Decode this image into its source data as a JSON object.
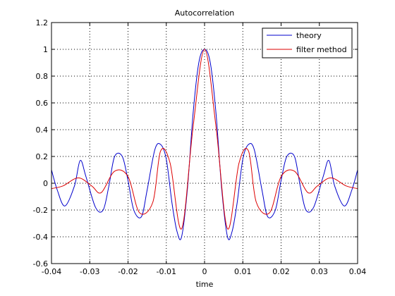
{
  "chart_data": {
    "type": "line",
    "title": "Autocorrelation",
    "xlabel": "time",
    "ylabel": "",
    "xlim": [
      -0.04,
      0.04
    ],
    "ylim": [
      -0.6,
      1.2
    ],
    "xticks": [
      -0.04,
      -0.03,
      -0.02,
      -0.01,
      0,
      0.01,
      0.02,
      0.03,
      0.04
    ],
    "xtick_labels": [
      "-0.04",
      "-0.03",
      "-0.02",
      "-0.01",
      "0",
      "0.01",
      "0.02",
      "0.03",
      "0.04"
    ],
    "yticks": [
      -0.6,
      -0.4,
      -0.2,
      0,
      0.2,
      0.4,
      0.6,
      0.8,
      1,
      1.2
    ],
    "ytick_labels": [
      "-0.6",
      "-0.4",
      "-0.2",
      "0",
      "0.2",
      "0.4",
      "0.6",
      "0.8",
      "1",
      "1.2"
    ],
    "grid": true,
    "legend_position": "top-right",
    "series": [
      {
        "name": "theory",
        "color": "#0000cc",
        "x": [
          -0.04,
          -0.0385,
          -0.0365,
          -0.034,
          -0.0325,
          -0.031,
          -0.0285,
          -0.0265,
          -0.025,
          -0.0235,
          -0.0215,
          -0.02,
          -0.0185,
          -0.0165,
          -0.015,
          -0.013,
          -0.0115,
          -0.01,
          -0.0085,
          -0.0072,
          -0.006,
          -0.0045,
          -0.003,
          -0.0015,
          0,
          0.0015,
          0.003,
          0.0045,
          0.006,
          0.0072,
          0.0085,
          0.01,
          0.0115,
          0.013,
          0.015,
          0.0165,
          0.0185,
          0.02,
          0.0215,
          0.0235,
          0.025,
          0.0265,
          0.0285,
          0.031,
          0.0325,
          0.034,
          0.0365,
          0.0385,
          0.04
        ],
        "y": [
          0.1,
          -0.05,
          -0.17,
          -0.02,
          0.17,
          0.05,
          -0.18,
          -0.2,
          -0.02,
          0.2,
          0.2,
          0.02,
          -0.2,
          -0.25,
          -0.05,
          0.25,
          0.29,
          0.18,
          -0.15,
          -0.36,
          -0.4,
          -0.05,
          0.52,
          0.9,
          1.0,
          0.9,
          0.52,
          -0.05,
          -0.4,
          -0.36,
          -0.15,
          0.18,
          0.29,
          0.25,
          -0.05,
          -0.25,
          -0.2,
          0.02,
          0.2,
          0.2,
          -0.02,
          -0.2,
          -0.18,
          0.05,
          0.17,
          -0.02,
          -0.17,
          -0.05,
          0.1
        ]
      },
      {
        "name": "filter method",
        "color": "#dd0000",
        "x": [
          -0.04,
          -0.037,
          -0.033,
          -0.0295,
          -0.027,
          -0.0235,
          -0.02,
          -0.017,
          -0.0135,
          -0.0115,
          -0.009,
          -0.006,
          -0.003,
          0,
          0.003,
          0.006,
          0.009,
          0.0115,
          0.0135,
          0.017,
          0.02,
          0.0235,
          0.027,
          0.0295,
          0.033,
          0.037,
          0.04
        ],
        "y": [
          -0.04,
          -0.02,
          0.04,
          -0.02,
          -0.07,
          0.09,
          0.05,
          -0.22,
          -0.14,
          0.24,
          0.15,
          -0.34,
          0.42,
          1.0,
          0.42,
          -0.34,
          0.15,
          0.24,
          -0.14,
          -0.22,
          0.05,
          0.09,
          -0.07,
          -0.02,
          0.04,
          -0.02,
          -0.04
        ]
      }
    ]
  }
}
